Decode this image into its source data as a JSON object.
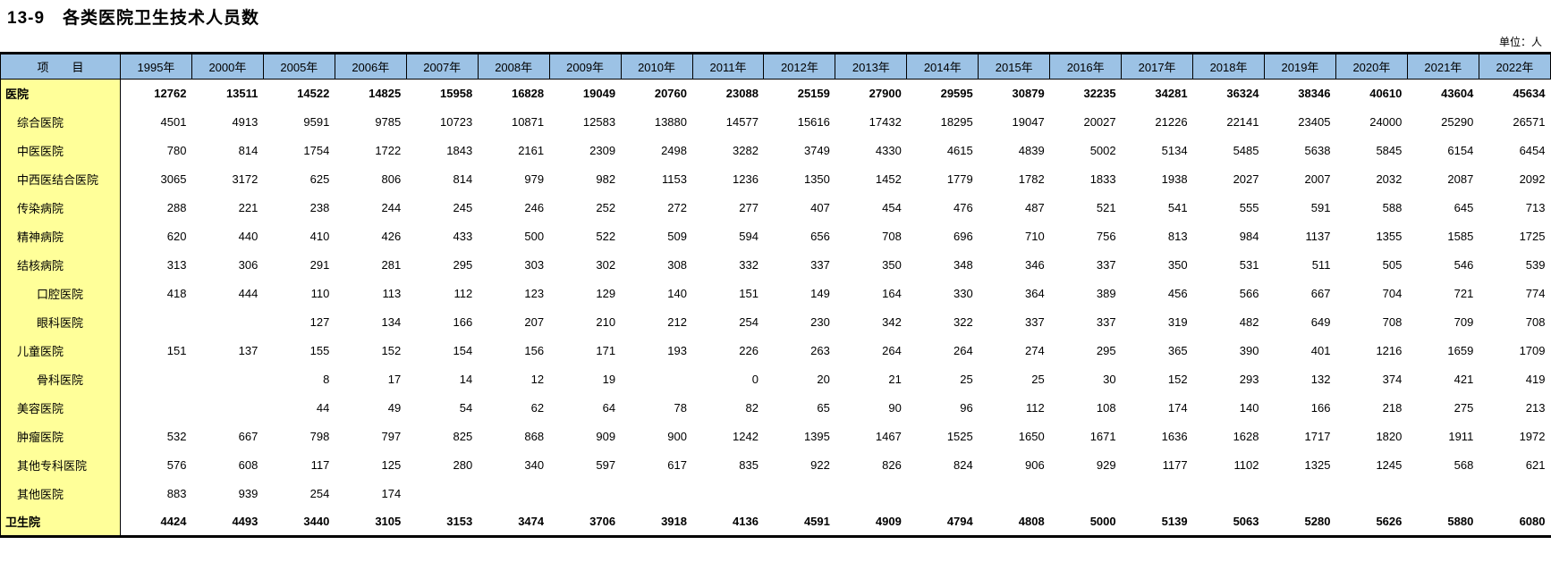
{
  "title": "13-9　各类医院卫生技术人员数",
  "unit_note": "单位：人",
  "colors": {
    "header_bg": "#9CC2E5",
    "label_bg": "#FFFF99",
    "border": "#000000"
  },
  "table": {
    "item_header": "项　　目",
    "years": [
      "1995年",
      "2000年",
      "2005年",
      "2006年",
      "2007年",
      "2008年",
      "2009年",
      "2010年",
      "2011年",
      "2012年",
      "2013年",
      "2014年",
      "2015年",
      "2016年",
      "2017年",
      "2018年",
      "2019年",
      "2020年",
      "2021年",
      "2022年"
    ],
    "rows": [
      {
        "label": "医院",
        "indent": 0,
        "bold": true,
        "values": [
          "12762",
          "13511",
          "14522",
          "14825",
          "15958",
          "16828",
          "19049",
          "20760",
          "23088",
          "25159",
          "27900",
          "29595",
          "30879",
          "32235",
          "34281",
          "36324",
          "38346",
          "40610",
          "43604",
          "45634"
        ]
      },
      {
        "label": "综合医院",
        "indent": 1,
        "bold": false,
        "values": [
          "4501",
          "4913",
          "9591",
          "9785",
          "10723",
          "10871",
          "12583",
          "13880",
          "14577",
          "15616",
          "17432",
          "18295",
          "19047",
          "20027",
          "21226",
          "22141",
          "23405",
          "24000",
          "25290",
          "26571"
        ]
      },
      {
        "label": "中医医院",
        "indent": 1,
        "bold": false,
        "values": [
          "780",
          "814",
          "1754",
          "1722",
          "1843",
          "2161",
          "2309",
          "2498",
          "3282",
          "3749",
          "4330",
          "4615",
          "4839",
          "5002",
          "5134",
          "5485",
          "5638",
          "5845",
          "6154",
          "6454"
        ]
      },
      {
        "label": "中西医结合医院",
        "indent": 1,
        "bold": false,
        "values": [
          "3065",
          "3172",
          "625",
          "806",
          "814",
          "979",
          "982",
          "1153",
          "1236",
          "1350",
          "1452",
          "1779",
          "1782",
          "1833",
          "1938",
          "2027",
          "2007",
          "2032",
          "2087",
          "2092"
        ]
      },
      {
        "label": "传染病院",
        "indent": 1,
        "bold": false,
        "values": [
          "288",
          "221",
          "238",
          "244",
          "245",
          "246",
          "252",
          "272",
          "277",
          "407",
          "454",
          "476",
          "487",
          "521",
          "541",
          "555",
          "591",
          "588",
          "645",
          "713"
        ]
      },
      {
        "label": "精神病院",
        "indent": 1,
        "bold": false,
        "values": [
          "620",
          "440",
          "410",
          "426",
          "433",
          "500",
          "522",
          "509",
          "594",
          "656",
          "708",
          "696",
          "710",
          "756",
          "813",
          "984",
          "1137",
          "1355",
          "1585",
          "1725"
        ]
      },
      {
        "label": "结核病院",
        "indent": 1,
        "bold": false,
        "values": [
          "313",
          "306",
          "291",
          "281",
          "295",
          "303",
          "302",
          "308",
          "332",
          "337",
          "350",
          "348",
          "346",
          "337",
          "350",
          "531",
          "511",
          "505",
          "546",
          "539"
        ]
      },
      {
        "label": "口腔医院",
        "indent": 2,
        "bold": false,
        "values": [
          "418",
          "444",
          "110",
          "113",
          "112",
          "123",
          "129",
          "140",
          "151",
          "149",
          "164",
          "330",
          "364",
          "389",
          "456",
          "566",
          "667",
          "704",
          "721",
          "774"
        ]
      },
      {
        "label": "眼科医院",
        "indent": 2,
        "bold": false,
        "values": [
          "",
          "",
          "127",
          "134",
          "166",
          "207",
          "210",
          "212",
          "254",
          "230",
          "342",
          "322",
          "337",
          "337",
          "319",
          "482",
          "649",
          "708",
          "709",
          "708"
        ]
      },
      {
        "label": "儿童医院",
        "indent": 1,
        "bold": false,
        "values": [
          "151",
          "137",
          "155",
          "152",
          "154",
          "156",
          "171",
          "193",
          "226",
          "263",
          "264",
          "264",
          "274",
          "295",
          "365",
          "390",
          "401",
          "1216",
          "1659",
          "1709"
        ]
      },
      {
        "label": "骨科医院",
        "indent": 2,
        "bold": false,
        "values": [
          "",
          "",
          "8",
          "17",
          "14",
          "12",
          "19",
          "",
          "0",
          "20",
          "21",
          "25",
          "25",
          "30",
          "152",
          "293",
          "132",
          "374",
          "421",
          "419"
        ]
      },
      {
        "label": "美容医院",
        "indent": 1,
        "bold": false,
        "values": [
          "",
          "",
          "44",
          "49",
          "54",
          "62",
          "64",
          "78",
          "82",
          "65",
          "90",
          "96",
          "112",
          "108",
          "174",
          "140",
          "166",
          "218",
          "275",
          "213"
        ]
      },
      {
        "label": "肿瘤医院",
        "indent": 1,
        "bold": false,
        "values": [
          "532",
          "667",
          "798",
          "797",
          "825",
          "868",
          "909",
          "900",
          "1242",
          "1395",
          "1467",
          "1525",
          "1650",
          "1671",
          "1636",
          "1628",
          "1717",
          "1820",
          "1911",
          "1972"
        ]
      },
      {
        "label": "其他专科医院",
        "indent": 1,
        "bold": false,
        "values": [
          "576",
          "608",
          "117",
          "125",
          "280",
          "340",
          "597",
          "617",
          "835",
          "922",
          "826",
          "824",
          "906",
          "929",
          "1177",
          "1102",
          "1325",
          "1245",
          "568",
          "621"
        ]
      },
      {
        "label": "其他医院",
        "indent": 1,
        "bold": false,
        "values": [
          "883",
          "939",
          "254",
          "174",
          "",
          "",
          "",
          "",
          "",
          "",
          "",
          "",
          "",
          "",
          "",
          "",
          "",
          "",
          "",
          ""
        ]
      },
      {
        "label": "卫生院",
        "indent": 0,
        "bold": true,
        "values": [
          "4424",
          "4493",
          "3440",
          "3105",
          "3153",
          "3474",
          "3706",
          "3918",
          "4136",
          "4591",
          "4909",
          "4794",
          "4808",
          "5000",
          "5139",
          "5063",
          "5280",
          "5626",
          "5880",
          "6080"
        ]
      }
    ]
  }
}
